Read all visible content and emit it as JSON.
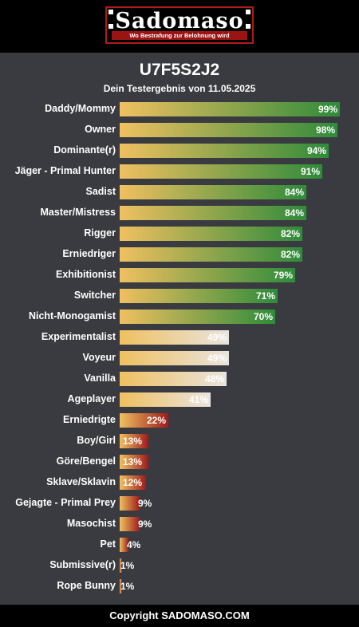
{
  "header": {
    "logo_text": "Sadomaso",
    "logo_tagline": "Wo Bestrafung zur Belohnung wird"
  },
  "result": {
    "title": "U7F5S2J2",
    "subtitle": "Dein Testergebnis von 11.05.2025"
  },
  "colors": {
    "high_end": "#2e8b3a",
    "mid_end": "#e8e4df",
    "low_end": "#9e1b1b",
    "bar_start": "#f0c060"
  },
  "chart_data": {
    "type": "bar",
    "orientation": "horizontal",
    "xlim": [
      0,
      100
    ],
    "categories": [
      "Daddy/Mommy",
      "Owner",
      "Dominante(r)",
      "Jäger - Primal Hunter",
      "Sadist",
      "Master/Mistress",
      "Rigger",
      "Erniedriger",
      "Exhibitionist",
      "Switcher",
      "Nicht-Monogamist",
      "Experimentalist",
      "Voyeur",
      "Vanilla",
      "Ageplayer",
      "Erniedrigte",
      "Boy/Girl",
      "Göre/Bengel",
      "Sklave/Sklavin",
      "Gejagte - Primal Prey",
      "Masochist",
      "Pet",
      "Submissive(r)",
      "Rope Bunny"
    ],
    "values": [
      99,
      98,
      94,
      91,
      84,
      84,
      82,
      82,
      79,
      71,
      70,
      49,
      49,
      48,
      41,
      22,
      13,
      13,
      12,
      9,
      9,
      4,
      1,
      1
    ],
    "value_labels": [
      "99%",
      "98%",
      "94%",
      "91%",
      "84%",
      "84%",
      "82%",
      "82%",
      "79%",
      "71%",
      "70%",
      "49%",
      "49%",
      "48%",
      "41%",
      "22%",
      "13%",
      "13%",
      "12%",
      "9%",
      "9%",
      "4%",
      "1%",
      "1%"
    ]
  },
  "footer": {
    "text": "Copyright SADOMASO.COM"
  }
}
